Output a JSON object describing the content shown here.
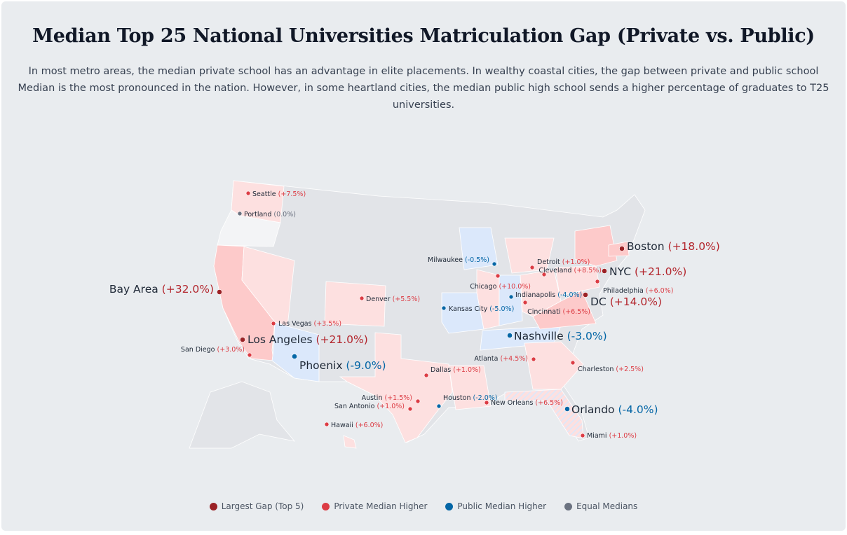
{
  "title": "Median Top 25 National Universities Matriculation Gap (Private vs. Public)",
  "subtitle": "In most metro areas, the median private school has an advantage in elite placements. In wealthy coastal cities, the gap between private and public school Median is the most pronounced in the nation. However, in some heartland cities, the median public high school sends a higher percentage of graduates to T25 universities.",
  "colors": {
    "largest_gap": "#9b2226",
    "private_higher": "#dc3c44",
    "public_higher": "#0466a6",
    "equal": "#6b7280",
    "state_private_strong": "#fdcaca",
    "state_private": "#fde0e0",
    "state_public": "#dbe8fb",
    "state_equal": "#f3f4f6",
    "state_none": "#e2e4e8"
  },
  "cities": [
    {
      "name": "Seattle",
      "gap": "(+7.5%)",
      "category": "private_higher"
    },
    {
      "name": "Portland",
      "gap": "(0.0%)",
      "category": "equal"
    },
    {
      "name": "Bay Area",
      "gap": "(+32.0%)",
      "category": "largest_gap"
    },
    {
      "name": "Los Angeles",
      "gap": "(+21.0%)",
      "category": "largest_gap"
    },
    {
      "name": "San Diego",
      "gap": "(+3.0%)",
      "category": "private_higher"
    },
    {
      "name": "Las Vegas",
      "gap": "(+3.5%)",
      "category": "private_higher"
    },
    {
      "name": "Phoenix",
      "gap": "(-9.0%)",
      "category": "public_higher",
      "big": true
    },
    {
      "name": "Denver",
      "gap": "(+5.5%)",
      "category": "private_higher"
    },
    {
      "name": "Kansas City",
      "gap": "(-5.0%)",
      "category": "public_higher"
    },
    {
      "name": "Milwaukee",
      "gap": "(-0.5%)",
      "category": "public_higher"
    },
    {
      "name": "Chicago",
      "gap": "(+10.0%)",
      "category": "private_higher"
    },
    {
      "name": "Detroit",
      "gap": "(+1.0%)",
      "category": "private_higher"
    },
    {
      "name": "Cleveland",
      "gap": "(+8.5%)",
      "category": "private_higher"
    },
    {
      "name": "NYC",
      "gap": "(+21.0%)",
      "category": "largest_gap"
    },
    {
      "name": "Boston",
      "gap": "(+18.0%)",
      "category": "largest_gap"
    },
    {
      "name": "Philadelphia",
      "gap": "(+6.0%)",
      "category": "private_higher"
    },
    {
      "name": "DC",
      "gap": "(+14.0%)",
      "category": "largest_gap"
    },
    {
      "name": "Indianapolis",
      "gap": "(-4.0%)",
      "category": "public_higher"
    },
    {
      "name": "Cincinnati",
      "gap": "(+6.5%)",
      "category": "private_higher"
    },
    {
      "name": "Nashville",
      "gap": "(-3.0%)",
      "category": "public_higher",
      "big": true
    },
    {
      "name": "Atlanta",
      "gap": "(+4.5%)",
      "category": "private_higher"
    },
    {
      "name": "Charleston",
      "gap": "(+2.5%)",
      "category": "private_higher"
    },
    {
      "name": "Dallas",
      "gap": "(+1.0%)",
      "category": "private_higher"
    },
    {
      "name": "Austin",
      "gap": "(+1.5%)",
      "category": "private_higher"
    },
    {
      "name": "San Antonio",
      "gap": "(+1.0%)",
      "category": "private_higher"
    },
    {
      "name": "Houston",
      "gap": "(-2.0%)",
      "category": "public_higher"
    },
    {
      "name": "New Orleans",
      "gap": "(+6.5%)",
      "category": "private_higher"
    },
    {
      "name": "Orlando",
      "gap": "(-4.0%)",
      "category": "public_higher",
      "big": true
    },
    {
      "name": "Miami",
      "gap": "(+1.0%)",
      "category": "private_higher"
    },
    {
      "name": "Hawaii",
      "gap": "(+6.0%)",
      "category": "private_higher"
    }
  ],
  "legend": [
    {
      "label": "Largest Gap (Top 5)",
      "category": "largest_gap"
    },
    {
      "label": "Private Median Higher",
      "category": "private_higher"
    },
    {
      "label": "Public Median Higher",
      "category": "public_higher"
    },
    {
      "label": "Equal Medians",
      "category": "equal"
    }
  ]
}
